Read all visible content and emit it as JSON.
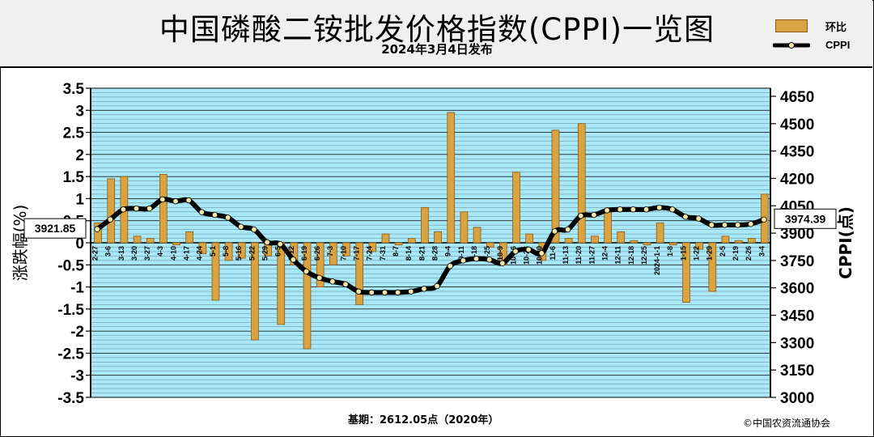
{
  "header": {
    "title": "中国磷酸二铵批发价格指数(CPPI)一览图",
    "subtitle": "2024年3月4日发布"
  },
  "footer": {
    "base_note": "基期：2612.05点（2020年）",
    "copyright": "©中国农资流通协会"
  },
  "colors": {
    "bar": "#d9a341",
    "bar_edge": "#8a5a14",
    "line": "#000000",
    "marker": "#f6e7a8",
    "plot_bg": "#a8e8f8",
    "grid": "#000000"
  },
  "chart_data": {
    "type": "bar+line",
    "left_axis": {
      "label": "涨跌幅(%)",
      "min": -3.5,
      "max": 3.5,
      "step": 0.5,
      "tick_labels": [
        "3.5",
        "3",
        "2.5",
        "2",
        "1.5",
        "1",
        "0.5",
        "0",
        "-0.5",
        "-1",
        "-1.5",
        "-2",
        "-2.5",
        "-3",
        "-3.5"
      ]
    },
    "right_axis": {
      "label": "CPPI(点)",
      "min": 3000,
      "max": 4650,
      "tick_labels": [
        "4650",
        "4500",
        "4350",
        "4200",
        "4050",
        "3900",
        "3750",
        "3600",
        "3450",
        "3300",
        "3150",
        "3000"
      ]
    },
    "x_tick_labels": [
      "2-27",
      "3-6",
      "3-13",
      "3-20",
      "3-27",
      "4-3",
      "4-10",
      "4-17",
      "4-24",
      "5-1",
      "5-8",
      "5-16",
      "5-22",
      "5-29",
      "6-5",
      "6-12",
      "6-19",
      "6-26",
      "7-3",
      "7-10",
      "7-17",
      "7-24",
      "7-31",
      "8-7",
      "8-14",
      "8-21",
      "8-28",
      "9-4",
      "9-11",
      "9-18",
      "9-25",
      "10-9",
      "10-16",
      "10-23",
      "10-30",
      "11-6",
      "11-13",
      "11-20",
      "11-27",
      "12-4",
      "12-11",
      "12-18",
      "12-25",
      "2024-1-1",
      "1-8",
      "1-15",
      "1-22",
      "1-29",
      "2-5",
      "2-19",
      "2-26",
      "3-4"
    ],
    "series": [
      {
        "name": "环比",
        "type": "bar",
        "values": [
          0.45,
          1.45,
          1.5,
          0.15,
          0.1,
          1.55,
          -0.05,
          0.25,
          -0.25,
          -1.3,
          -0.4,
          -0.35,
          -2.2,
          -0.3,
          -1.85,
          -0.5,
          -2.4,
          -1.0,
          -0.5,
          -0.3,
          -1.4,
          -0.2,
          0.2,
          -0.05,
          0.1,
          0.8,
          0.25,
          2.95,
          0.7,
          0.35,
          -0.1,
          -0.5,
          1.6,
          0.2,
          -0.4,
          2.55,
          0.1,
          2.7,
          0.15,
          0.7,
          0.25,
          0.05,
          -0.05,
          0.45,
          -0.05,
          -1.35,
          -0.15,
          -1.1,
          0.15,
          0.05,
          0.1,
          1.1
        ]
      },
      {
        "name": "CPPI",
        "type": "line",
        "values": [
          3921.85,
          3975,
          4030,
          4035,
          4035,
          4085,
          4075,
          4080,
          4015,
          4000,
          3985,
          3935,
          3920,
          3850,
          3840,
          3755,
          3690,
          3655,
          3635,
          3620,
          3580,
          3575,
          3575,
          3575,
          3580,
          3595,
          3610,
          3720,
          3750,
          3760,
          3755,
          3735,
          3800,
          3810,
          3790,
          3910,
          3920,
          3995,
          4000,
          4025,
          4030,
          4030,
          4030,
          4040,
          4030,
          3990,
          3980,
          3945,
          3945,
          3945,
          3950,
          3974.39
        ]
      }
    ],
    "callouts": {
      "start": "3921.85",
      "end": "3974.39"
    },
    "grid": true,
    "legend_position": "top-right"
  }
}
